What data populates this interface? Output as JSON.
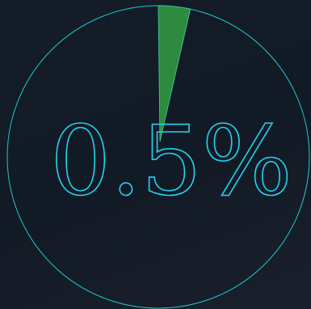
{
  "gauge": {
    "display_value": "0.5%",
    "fraction": 0.005,
    "wedge_fraction": 0.034,
    "colors": {
      "ring": "#1fc7cf",
      "wedge_fill": "#2e8a3e",
      "wedge_stroke": "#3fd5a0",
      "text_outline": "#22d3ee",
      "background": "#131b27"
    }
  }
}
